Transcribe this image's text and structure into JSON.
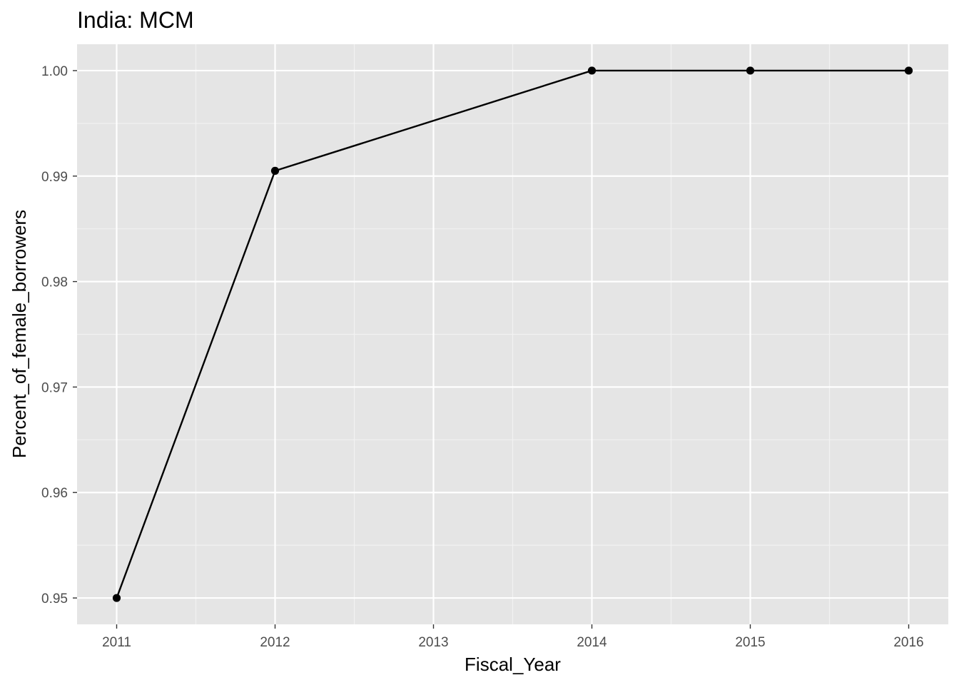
{
  "chart_data": {
    "type": "line",
    "title": "India:  MCM",
    "xlabel": "Fiscal_Year",
    "ylabel": "Percent_of_female_borrowers",
    "x": [
      2011,
      2012,
      2014,
      2015,
      2016
    ],
    "y": [
      0.95,
      0.9905,
      1.0,
      1.0,
      1.0
    ],
    "xlim": [
      2010.75,
      2016.25
    ],
    "ylim": [
      0.9475,
      1.0025
    ],
    "x_ticks": [
      2011,
      2012,
      2013,
      2014,
      2015,
      2016
    ],
    "x_tick_labels": [
      "2011",
      "2012",
      "2013",
      "2014",
      "2015",
      "2016"
    ],
    "y_ticks": [
      0.95,
      0.96,
      0.97,
      0.98,
      0.99,
      1.0
    ],
    "y_tick_labels": [
      "0.95",
      "0.96",
      "0.97",
      "0.98",
      "0.99",
      "1.00"
    ],
    "grid": true,
    "legend": "none",
    "colors": {
      "panel_background": "#e5e5e5",
      "grid_major": "#ffffff",
      "grid_minor": "#f2f2f2",
      "line": "#000000",
      "point": "#000000",
      "tick_text": "#4d4d4d",
      "tick_mark": "#333333"
    }
  }
}
